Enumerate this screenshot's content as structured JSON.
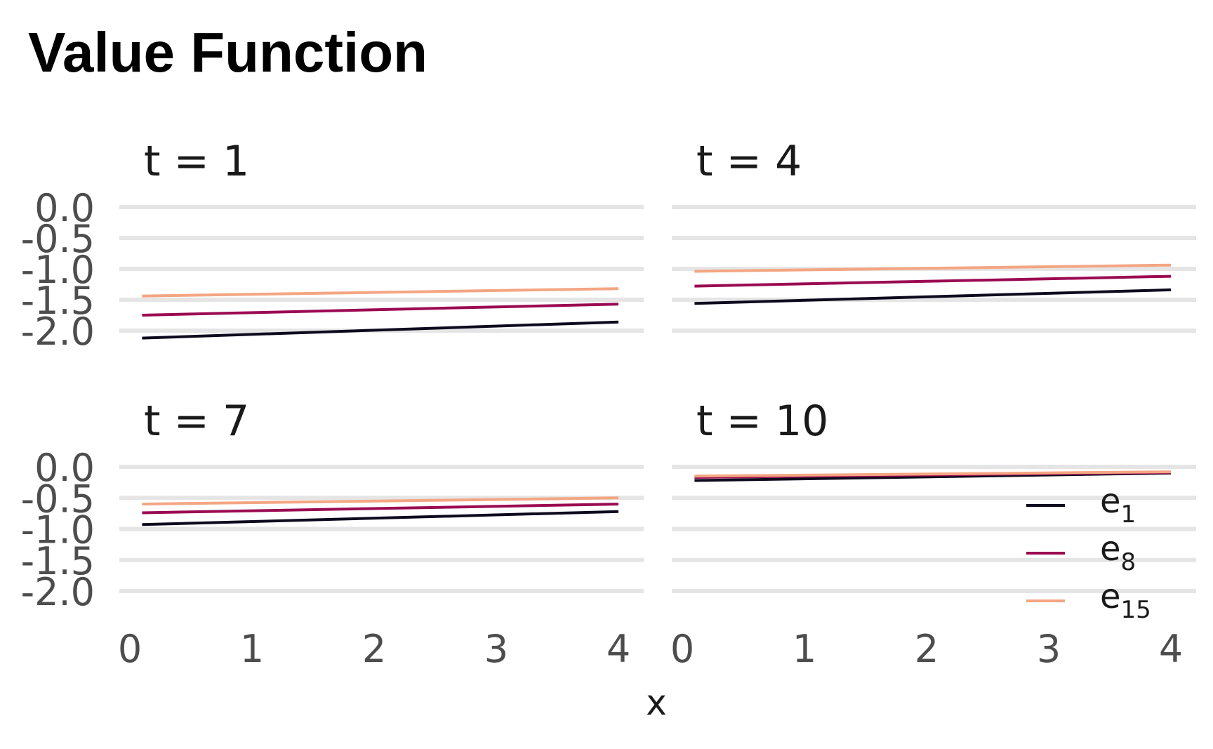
{
  "chart_data": {
    "type": "line",
    "title": "Value Function",
    "xlabel": "x",
    "ylabel": "",
    "xlim": [
      0,
      4
    ],
    "ylim": [
      -2.0,
      0.0
    ],
    "xticks": [
      "0",
      "1",
      "2",
      "3",
      "4"
    ],
    "yticks": [
      "0.0",
      "-0.5",
      "-1.0",
      "-1.5",
      "-2.0"
    ],
    "ytick_values": [
      0.0,
      -0.5,
      -1.0,
      -1.5,
      -2.0
    ],
    "xtick_values": [
      0,
      1,
      2,
      3,
      4
    ],
    "grid": true,
    "legend_position": "bottom-right",
    "legend": [
      {
        "base": "e",
        "sub": "1",
        "color": "#0d0a1e"
      },
      {
        "base": "e",
        "sub": "8",
        "color": "#9b0a52"
      },
      {
        "base": "e",
        "sub": "15",
        "color": "#f4a582"
      }
    ],
    "panels": [
      {
        "label": "t = 1",
        "series": [
          {
            "name": "e1",
            "x": [
              0.1,
              4.0
            ],
            "y": [
              -2.12,
              -1.86
            ]
          },
          {
            "name": "e8",
            "x": [
              0.1,
              4.0
            ],
            "y": [
              -1.75,
              -1.57
            ]
          },
          {
            "name": "e15",
            "x": [
              0.1,
              4.0
            ],
            "y": [
              -1.44,
              -1.32
            ]
          }
        ]
      },
      {
        "label": "t = 4",
        "series": [
          {
            "name": "e1",
            "x": [
              0.1,
              4.0
            ],
            "y": [
              -1.56,
              -1.34
            ]
          },
          {
            "name": "e8",
            "x": [
              0.1,
              4.0
            ],
            "y": [
              -1.28,
              -1.12
            ]
          },
          {
            "name": "e15",
            "x": [
              0.1,
              4.0
            ],
            "y": [
              -1.04,
              -0.94
            ]
          }
        ]
      },
      {
        "label": "t = 7",
        "series": [
          {
            "name": "e1",
            "x": [
              0.1,
              4.0
            ],
            "y": [
              -0.93,
              -0.72
            ]
          },
          {
            "name": "e8",
            "x": [
              0.1,
              4.0
            ],
            "y": [
              -0.74,
              -0.6
            ]
          },
          {
            "name": "e15",
            "x": [
              0.1,
              4.0
            ],
            "y": [
              -0.6,
              -0.5
            ]
          }
        ]
      },
      {
        "label": "t = 10",
        "series": [
          {
            "name": "e1",
            "x": [
              0.1,
              4.0
            ],
            "y": [
              -0.22,
              -0.1
            ]
          },
          {
            "name": "e8",
            "x": [
              0.1,
              4.0
            ],
            "y": [
              -0.17,
              -0.09
            ]
          },
          {
            "name": "e15",
            "x": [
              0.1,
              4.0
            ],
            "y": [
              -0.15,
              -0.08
            ]
          }
        ]
      }
    ]
  }
}
